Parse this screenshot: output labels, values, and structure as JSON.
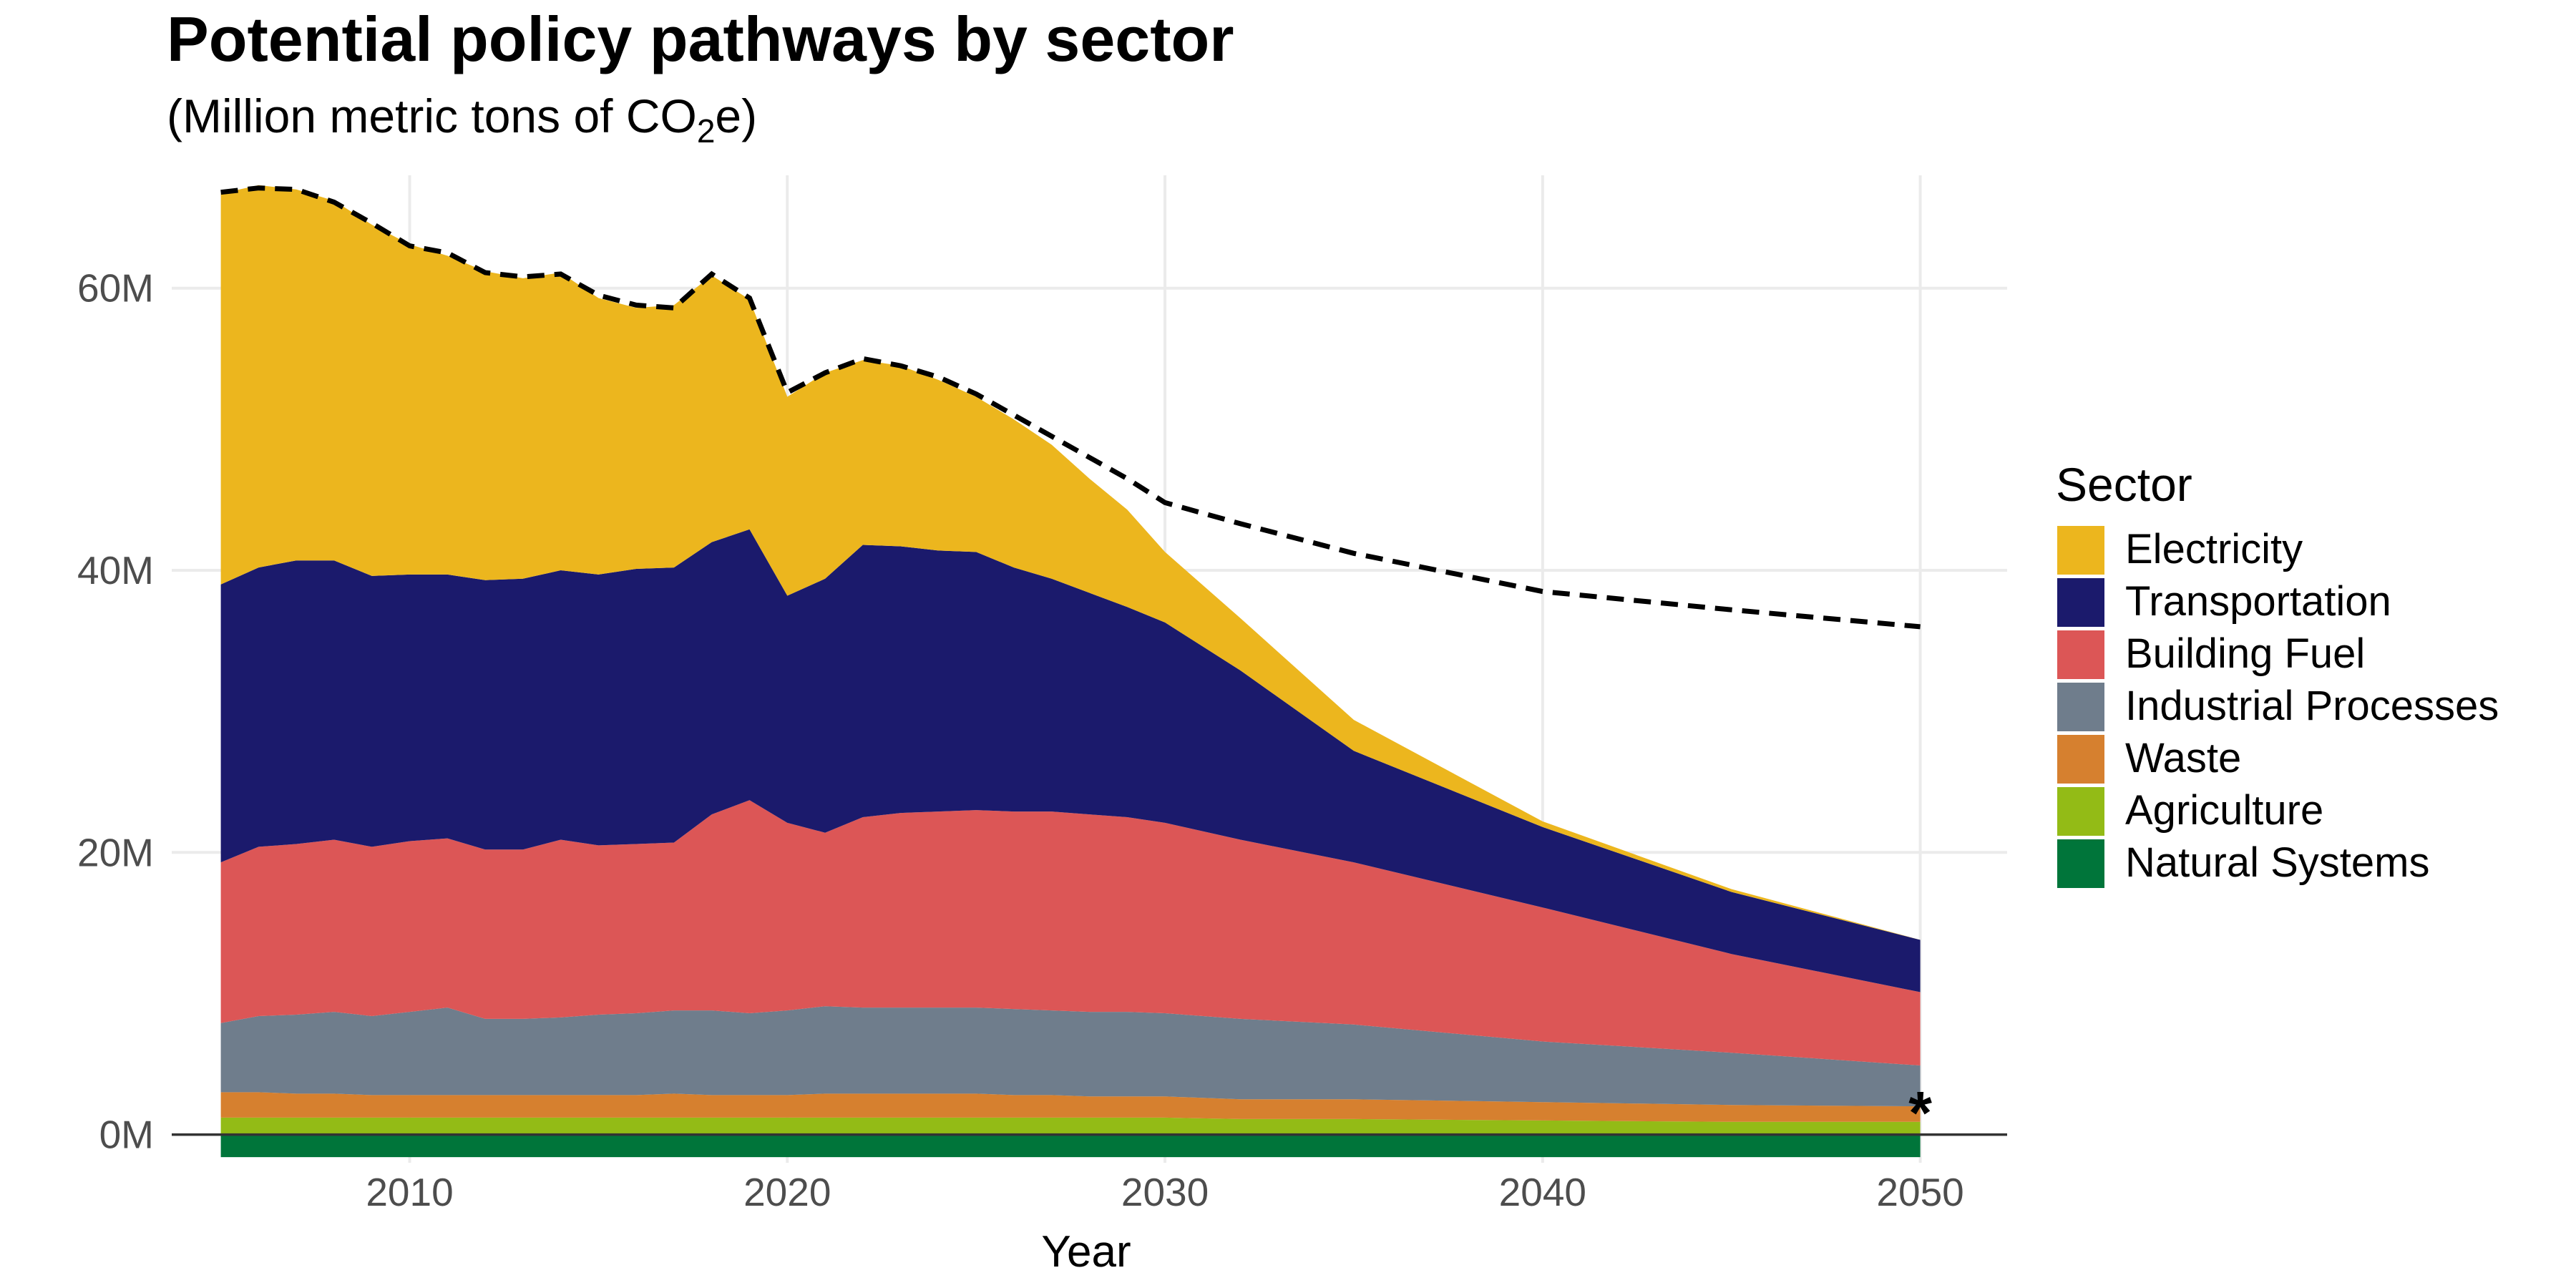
{
  "chart_data": {
    "type": "area",
    "title": "Potential policy pathways by sector",
    "subtitle_main": "(Million metric tons of CO",
    "subtitle_sub": "2",
    "subtitle_end": "e)",
    "xlabel": "Year",
    "ylabel": "",
    "xlim": [
      2005,
      2050
    ],
    "ylim": [
      -2000000,
      68000000
    ],
    "x_ticks": [
      2010,
      2020,
      2030,
      2040,
      2050
    ],
    "x_tick_labels": [
      "2010",
      "2020",
      "2030",
      "2040",
      "2050"
    ],
    "y_ticks": [
      0,
      20000000,
      40000000,
      60000000
    ],
    "y_tick_labels": [
      "0M",
      "20M",
      "40M",
      "60M"
    ],
    "grid": true,
    "legend_position": "right",
    "legend_title": "Sector",
    "x": [
      2005,
      2006,
      2007,
      2008,
      2009,
      2010,
      2011,
      2012,
      2013,
      2014,
      2015,
      2016,
      2017,
      2018,
      2019,
      2020,
      2021,
      2022,
      2023,
      2024,
      2025,
      2026,
      2027,
      2028,
      2029,
      2030,
      2032,
      2035,
      2040,
      2045,
      2050
    ],
    "series": [
      {
        "name": "Natural Systems",
        "color": "#00753a",
        "values": [
          -1600000,
          -1600000,
          -1600000,
          -1600000,
          -1600000,
          -1600000,
          -1600000,
          -1600000,
          -1600000,
          -1600000,
          -1600000,
          -1600000,
          -1600000,
          -1600000,
          -1600000,
          -1600000,
          -1600000,
          -1600000,
          -1600000,
          -1600000,
          -1600000,
          -1600000,
          -1600000,
          -1600000,
          -1600000,
          -1600000,
          -1600000,
          -1600000,
          -1600000,
          -1600000,
          -1600000
        ]
      },
      {
        "name": "Agriculture",
        "color": "#93bb16",
        "values": [
          1200000,
          1200000,
          1200000,
          1200000,
          1200000,
          1200000,
          1200000,
          1200000,
          1200000,
          1200000,
          1200000,
          1200000,
          1200000,
          1200000,
          1200000,
          1200000,
          1200000,
          1200000,
          1200000,
          1200000,
          1200000,
          1200000,
          1200000,
          1200000,
          1200000,
          1200000,
          1100000,
          1100000,
          1000000,
          900000,
          900000
        ]
      },
      {
        "name": "Waste",
        "color": "#d6802f",
        "values": [
          1800000,
          1800000,
          1700000,
          1700000,
          1600000,
          1600000,
          1600000,
          1600000,
          1600000,
          1600000,
          1600000,
          1600000,
          1700000,
          1600000,
          1600000,
          1600000,
          1700000,
          1700000,
          1700000,
          1700000,
          1700000,
          1600000,
          1600000,
          1500000,
          1500000,
          1500000,
          1400000,
          1400000,
          1300000,
          1200000,
          1100000
        ]
      },
      {
        "name": "Industrial Processes",
        "color": "#6f7d8c",
        "values": [
          4900000,
          5400000,
          5600000,
          5800000,
          5600000,
          5900000,
          6200000,
          5400000,
          5400000,
          5500000,
          5700000,
          5800000,
          5900000,
          6000000,
          5800000,
          6000000,
          6200000,
          6100000,
          6100000,
          6100000,
          6100000,
          6100000,
          6000000,
          6000000,
          6000000,
          5900000,
          5700000,
          5300000,
          4300000,
          3700000,
          2900000
        ]
      },
      {
        "name": "Building Fuel",
        "color": "#dc5656",
        "values": [
          11400000,
          12000000,
          12100000,
          12200000,
          12000000,
          12100000,
          12000000,
          12000000,
          12000000,
          12600000,
          12000000,
          12000000,
          11900000,
          13900000,
          15100000,
          13300000,
          12300000,
          13500000,
          13800000,
          13900000,
          14000000,
          14000000,
          14100000,
          14000000,
          13800000,
          13500000,
          12700000,
          11500000,
          9500000,
          7000000,
          5200000
        ]
      },
      {
        "name": "Transportation",
        "color": "#1b1a6c",
        "values": [
          19700000,
          19800000,
          20100000,
          19800000,
          19200000,
          18900000,
          18700000,
          19100000,
          19200000,
          19100000,
          19200000,
          19500000,
          19500000,
          19300000,
          19200000,
          16100000,
          18000000,
          19300000,
          18900000,
          18500000,
          18300000,
          17300000,
          16500000,
          15700000,
          14900000,
          14200000,
          12000000,
          7900000,
          5700000,
          4400000,
          3700000
        ]
      },
      {
        "name": "Electricity",
        "color": "#ecb61e",
        "values": [
          27700000,
          27100000,
          26300000,
          25500000,
          24900000,
          23400000,
          22600000,
          21900000,
          21300000,
          21100000,
          19600000,
          18500000,
          18600000,
          18900000,
          16300000,
          14100000,
          14600000,
          13100000,
          12800000,
          12100000,
          11000000,
          10500000,
          9500000,
          8100000,
          6900000,
          5000000,
          3700000,
          2200000,
          400000,
          200000,
          0
        ]
      }
    ],
    "target_line": {
      "style": "dashed",
      "x": [
        2005,
        2006,
        2007,
        2008,
        2009,
        2010,
        2011,
        2012,
        2013,
        2014,
        2015,
        2016,
        2017,
        2018,
        2019,
        2020,
        2021,
        2022,
        2023,
        2024,
        2025,
        2026,
        2027,
        2028,
        2029,
        2030,
        2032,
        2035,
        2040,
        2045,
        2050
      ],
      "values": [
        66800000,
        67100000,
        67000000,
        66100000,
        64600000,
        63000000,
        62500000,
        61100000,
        60800000,
        61000000,
        59500000,
        58800000,
        58600000,
        61000000,
        59300000,
        52600000,
        54000000,
        55000000,
        54500000,
        53700000,
        52500000,
        51000000,
        49500000,
        48000000,
        46500000,
        44800000,
        43300000,
        41200000,
        38500000,
        37200000,
        36000000
      ]
    },
    "annotation": {
      "text": "*",
      "x": 2050,
      "y": 2000000
    }
  }
}
